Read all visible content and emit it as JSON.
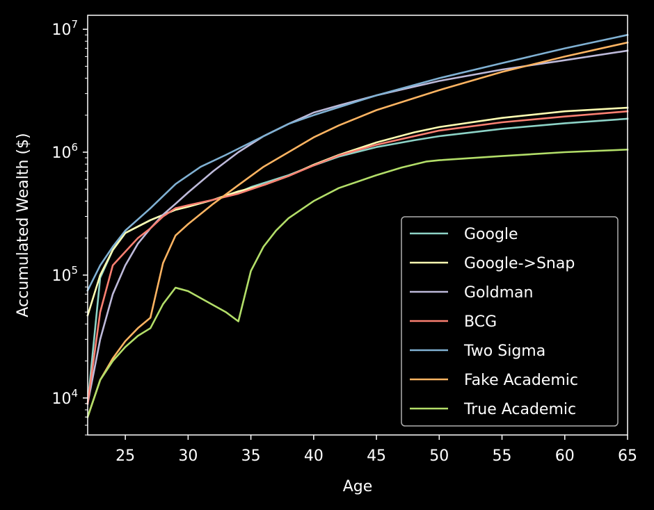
{
  "chart_data": {
    "type": "line",
    "title": "",
    "xlabel": "Age",
    "ylabel": "Accumulated Wealth ($)",
    "xlim": [
      22,
      65
    ],
    "ylim": [
      5000,
      13000000
    ],
    "yscale": "log",
    "x_ticks": [
      25,
      30,
      35,
      40,
      45,
      50,
      55,
      60,
      65
    ],
    "y_ticks": [
      {
        "value": 10000,
        "base": "10",
        "exp": "4"
      },
      {
        "value": 100000,
        "base": "10",
        "exp": "5"
      },
      {
        "value": 1000000,
        "base": "10",
        "exp": "6"
      },
      {
        "value": 10000000,
        "base": "10",
        "exp": "7"
      }
    ],
    "legend_position": "lower-right",
    "background": "#000000",
    "axis_color": "#ffffff",
    "series": [
      {
        "name": "Google",
        "color": "#8dd3c7",
        "points": [
          [
            22,
            9000
          ],
          [
            23,
            95000
          ],
          [
            24,
            160000
          ],
          [
            25,
            220000
          ],
          [
            27,
            280000
          ],
          [
            29,
            340000
          ],
          [
            30,
            360000
          ],
          [
            32,
            410000
          ],
          [
            34,
            470000
          ],
          [
            35,
            520000
          ],
          [
            38,
            650000
          ],
          [
            40,
            780000
          ],
          [
            42,
            920000
          ],
          [
            45,
            1100000
          ],
          [
            48,
            1250000
          ],
          [
            50,
            1350000
          ],
          [
            55,
            1550000
          ],
          [
            60,
            1720000
          ],
          [
            65,
            1870000
          ]
        ]
      },
      {
        "name": "Google->Snap",
        "color": "#ffffb3",
        "points": [
          [
            22,
            47000
          ],
          [
            23,
            100000
          ],
          [
            24,
            160000
          ],
          [
            25,
            220000
          ],
          [
            27,
            280000
          ],
          [
            29,
            340000
          ],
          [
            30,
            360000
          ],
          [
            32,
            410000
          ],
          [
            34,
            480000
          ],
          [
            36,
            540000
          ],
          [
            38,
            640000
          ],
          [
            40,
            790000
          ],
          [
            42,
            950000
          ],
          [
            45,
            1200000
          ],
          [
            48,
            1450000
          ],
          [
            50,
            1600000
          ],
          [
            55,
            1900000
          ],
          [
            60,
            2150000
          ],
          [
            65,
            2300000
          ]
        ]
      },
      {
        "name": "Goldman",
        "color": "#bebada",
        "points": [
          [
            22,
            9000
          ],
          [
            23,
            30000
          ],
          [
            24,
            70000
          ],
          [
            25,
            120000
          ],
          [
            26,
            180000
          ],
          [
            27,
            240000
          ],
          [
            28,
            310000
          ],
          [
            29,
            380000
          ],
          [
            30,
            470000
          ],
          [
            32,
            700000
          ],
          [
            34,
            1000000
          ],
          [
            36,
            1350000
          ],
          [
            38,
            1700000
          ],
          [
            40,
            2100000
          ],
          [
            42,
            2400000
          ],
          [
            45,
            2900000
          ],
          [
            50,
            3800000
          ],
          [
            55,
            4700000
          ],
          [
            60,
            5600000
          ],
          [
            65,
            6700000
          ]
        ]
      },
      {
        "name": "BCG",
        "color": "#fb8072",
        "points": [
          [
            22,
            9000
          ],
          [
            23,
            50000
          ],
          [
            24,
            120000
          ],
          [
            25,
            155000
          ],
          [
            26,
            200000
          ],
          [
            27,
            240000
          ],
          [
            28,
            300000
          ],
          [
            29,
            350000
          ],
          [
            30,
            370000
          ],
          [
            32,
            410000
          ],
          [
            34,
            460000
          ],
          [
            36,
            540000
          ],
          [
            38,
            640000
          ],
          [
            40,
            780000
          ],
          [
            42,
            940000
          ],
          [
            45,
            1150000
          ],
          [
            50,
            1500000
          ],
          [
            55,
            1750000
          ],
          [
            60,
            1950000
          ],
          [
            65,
            2150000
          ]
        ]
      },
      {
        "name": "Two Sigma",
        "color": "#80b1d3",
        "points": [
          [
            22,
            75000
          ],
          [
            23,
            120000
          ],
          [
            24,
            170000
          ],
          [
            25,
            230000
          ],
          [
            27,
            350000
          ],
          [
            29,
            550000
          ],
          [
            31,
            760000
          ],
          [
            33,
            950000
          ],
          [
            35,
            1200000
          ],
          [
            38,
            1700000
          ],
          [
            40,
            2000000
          ],
          [
            45,
            2900000
          ],
          [
            50,
            4000000
          ],
          [
            55,
            5300000
          ],
          [
            60,
            7000000
          ],
          [
            65,
            9000000
          ]
        ]
      },
      {
        "name": "Fake Academic",
        "color": "#fdb462",
        "points": [
          [
            22,
            7000
          ],
          [
            23,
            14000
          ],
          [
            24,
            21000
          ],
          [
            25,
            29000
          ],
          [
            26,
            37000
          ],
          [
            27,
            45000
          ],
          [
            28,
            125000
          ],
          [
            29,
            210000
          ],
          [
            30,
            260000
          ],
          [
            32,
            380000
          ],
          [
            34,
            540000
          ],
          [
            36,
            760000
          ],
          [
            38,
            1000000
          ],
          [
            40,
            1320000
          ],
          [
            42,
            1650000
          ],
          [
            45,
            2200000
          ],
          [
            50,
            3200000
          ],
          [
            55,
            4500000
          ],
          [
            60,
            6000000
          ],
          [
            65,
            7800000
          ]
        ]
      },
      {
        "name": "True Academic",
        "color": "#b3de69",
        "points": [
          [
            22,
            7000
          ],
          [
            23,
            14000
          ],
          [
            24,
            20000
          ],
          [
            25,
            26000
          ],
          [
            26,
            32000
          ],
          [
            27,
            37000
          ],
          [
            28,
            58000
          ],
          [
            29,
            79000
          ],
          [
            30,
            74000
          ],
          [
            32,
            57000
          ],
          [
            33,
            50000
          ],
          [
            34,
            42000
          ],
          [
            35,
            108000
          ],
          [
            36,
            170000
          ],
          [
            37,
            230000
          ],
          [
            38,
            290000
          ],
          [
            40,
            400000
          ],
          [
            42,
            510000
          ],
          [
            45,
            650000
          ],
          [
            47,
            750000
          ],
          [
            49,
            840000
          ],
          [
            50,
            860000
          ],
          [
            55,
            930000
          ],
          [
            60,
            1000000
          ],
          [
            65,
            1050000
          ]
        ]
      }
    ]
  }
}
